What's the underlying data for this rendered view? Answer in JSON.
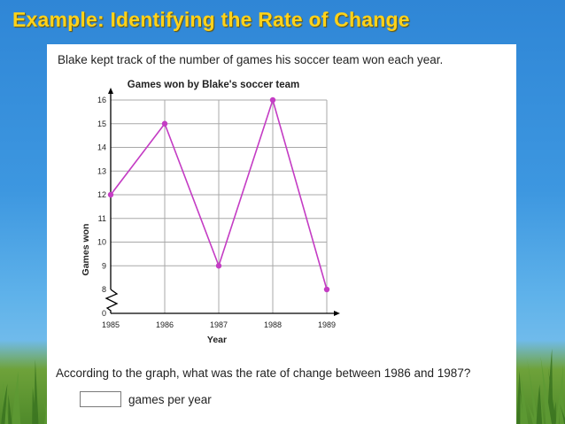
{
  "slide": {
    "title": "Example: Identifying the Rate of Change"
  },
  "problem": {
    "intro": "Blake kept track of the number of games his soccer team won each year.",
    "question": "According to the graph, what was the rate of change between 1986 and 1987?",
    "answer_value": "",
    "answer_unit": "games per year"
  },
  "chart_data": {
    "type": "line",
    "title": "Games won by Blake's soccer team",
    "xlabel": "Year",
    "ylabel": "Games won",
    "x": [
      1985,
      1986,
      1987,
      1988,
      1989
    ],
    "series": [
      {
        "values": [
          12,
          15,
          9,
          16,
          8
        ],
        "color": "#c43cc4"
      }
    ],
    "x_ticks": [
      "1985",
      "1986",
      "1987",
      "1988",
      "1989"
    ],
    "y_ticks": [
      "0",
      "8",
      "9",
      "10",
      "11",
      "12",
      "13",
      "14",
      "15",
      "16"
    ],
    "ylim": [
      8,
      16
    ],
    "axis_break": "zigzag between 0 and 8",
    "grid": true
  }
}
